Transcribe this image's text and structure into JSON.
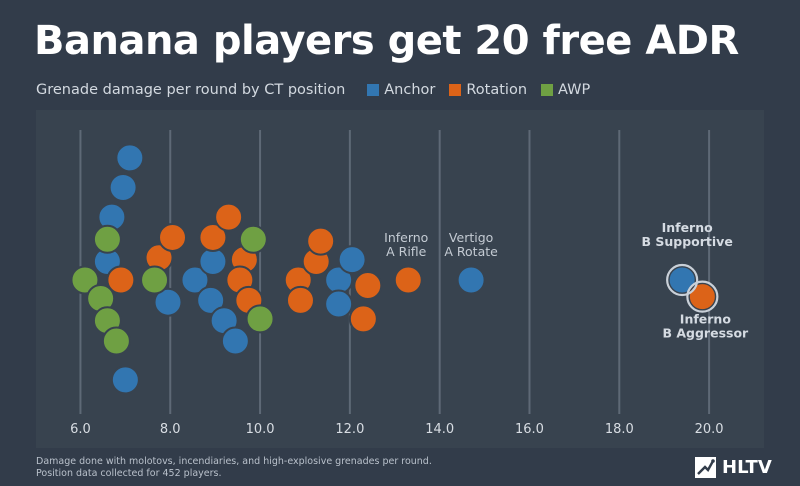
{
  "header": {
    "title": "Banana players get 20 free ADR",
    "subtitle": "Grenade damage per round by CT position"
  },
  "legend": [
    {
      "label": "Anchor",
      "color": "#3276b1"
    },
    {
      "label": "Rotation",
      "color": "#dc6318"
    },
    {
      "label": "AWP",
      "color": "#6fa043"
    }
  ],
  "footnote": {
    "line1": "Damage done with molotovs, incendiaries, and high-explosive grenades per round.",
    "line2": "Position data collected for 452 players."
  },
  "brand": {
    "name": "HLTV"
  },
  "chart_data": {
    "type": "scatter",
    "title": "Banana players get 20 free ADR",
    "subtitle": "Grenade damage per round by CT position",
    "xlabel": "",
    "ylabel": "",
    "xlim": [
      5.5,
      21.0
    ],
    "xticks": [
      "6.0",
      "8.0",
      "10.0",
      "12.0",
      "14.0",
      "16.0",
      "18.0",
      "20.0"
    ],
    "tick_values": [
      6,
      8,
      10,
      12,
      14,
      16,
      18,
      20
    ],
    "grid": true,
    "legend_position": "top",
    "layout_note": "beeswarm",
    "series": [
      {
        "name": "Anchor",
        "color": "#3276b1",
        "points": [
          {
            "x": 7.1,
            "y": 3.3
          },
          {
            "x": 6.95,
            "y": 2.5
          },
          {
            "x": 6.7,
            "y": 1.7
          },
          {
            "x": 6.6,
            "y": 0.5
          },
          {
            "x": 7.0,
            "y": -2.7
          },
          {
            "x": 7.95,
            "y": -0.6
          },
          {
            "x": 8.55,
            "y": 0.0
          },
          {
            "x": 8.95,
            "y": 0.5
          },
          {
            "x": 8.9,
            "y": -0.55
          },
          {
            "x": 9.2,
            "y": -1.1
          },
          {
            "x": 9.45,
            "y": -1.65
          },
          {
            "x": 11.75,
            "y": 0.0
          },
          {
            "x": 12.05,
            "y": 0.55
          },
          {
            "x": 11.75,
            "y": -0.65
          },
          {
            "x": 14.7,
            "y": 0.0
          },
          {
            "x": 19.4,
            "y": 0.0
          }
        ]
      },
      {
        "name": "Rotation",
        "color": "#dc6318",
        "points": [
          {
            "x": 6.9,
            "y": 0.0
          },
          {
            "x": 7.75,
            "y": 0.6
          },
          {
            "x": 8.05,
            "y": 1.15
          },
          {
            "x": 8.95,
            "y": 1.15
          },
          {
            "x": 9.3,
            "y": 1.7
          },
          {
            "x": 9.65,
            "y": 0.55
          },
          {
            "x": 9.55,
            "y": 0.0
          },
          {
            "x": 9.75,
            "y": -0.55
          },
          {
            "x": 10.85,
            "y": 0.0
          },
          {
            "x": 10.9,
            "y": -0.55
          },
          {
            "x": 11.25,
            "y": 0.5
          },
          {
            "x": 11.35,
            "y": 1.05
          },
          {
            "x": 12.4,
            "y": -0.15
          },
          {
            "x": 12.3,
            "y": -1.05
          },
          {
            "x": 13.3,
            "y": 0.0
          },
          {
            "x": 19.85,
            "y": -0.45
          }
        ]
      },
      {
        "name": "AWP",
        "color": "#6fa043",
        "points": [
          {
            "x": 6.6,
            "y": 1.1
          },
          {
            "x": 6.1,
            "y": 0.0
          },
          {
            "x": 6.45,
            "y": -0.5
          },
          {
            "x": 6.6,
            "y": -1.1
          },
          {
            "x": 6.8,
            "y": -1.65
          },
          {
            "x": 7.65,
            "y": 0.0
          },
          {
            "x": 9.85,
            "y": 1.1
          },
          {
            "x": 10.0,
            "y": -1.05
          }
        ]
      }
    ],
    "annotations": [
      {
        "text": [
          "Inferno",
          "A Rifle"
        ],
        "x": 13.3,
        "y": 0.0,
        "bold": false
      },
      {
        "text": [
          "Vertigo",
          "A Rotate"
        ],
        "x": 14.7,
        "y": 0.0,
        "bold": false
      },
      {
        "text": [
          "Inferno",
          "B Supportive"
        ],
        "x": 19.4,
        "y": 0.0,
        "bold": true
      },
      {
        "text": [
          "Inferno",
          "B Aggressor"
        ],
        "x": 19.85,
        "y": -0.45,
        "bold": true
      }
    ]
  }
}
